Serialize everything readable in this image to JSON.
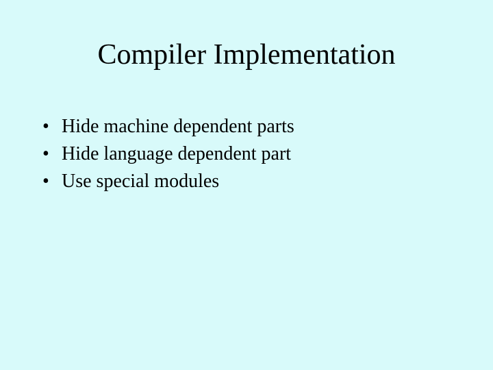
{
  "slide": {
    "background_color": "#d8fafa",
    "text_color": "#000000",
    "font_family": "Times New Roman",
    "title": {
      "text": "Compiler Implementation",
      "fontsize": 42
    },
    "bullets": [
      {
        "text": "Hide machine dependent parts"
      },
      {
        "text": "Hide language dependent part"
      },
      {
        "text": "Use special modules"
      }
    ],
    "bullet_fontsize": 28
  }
}
